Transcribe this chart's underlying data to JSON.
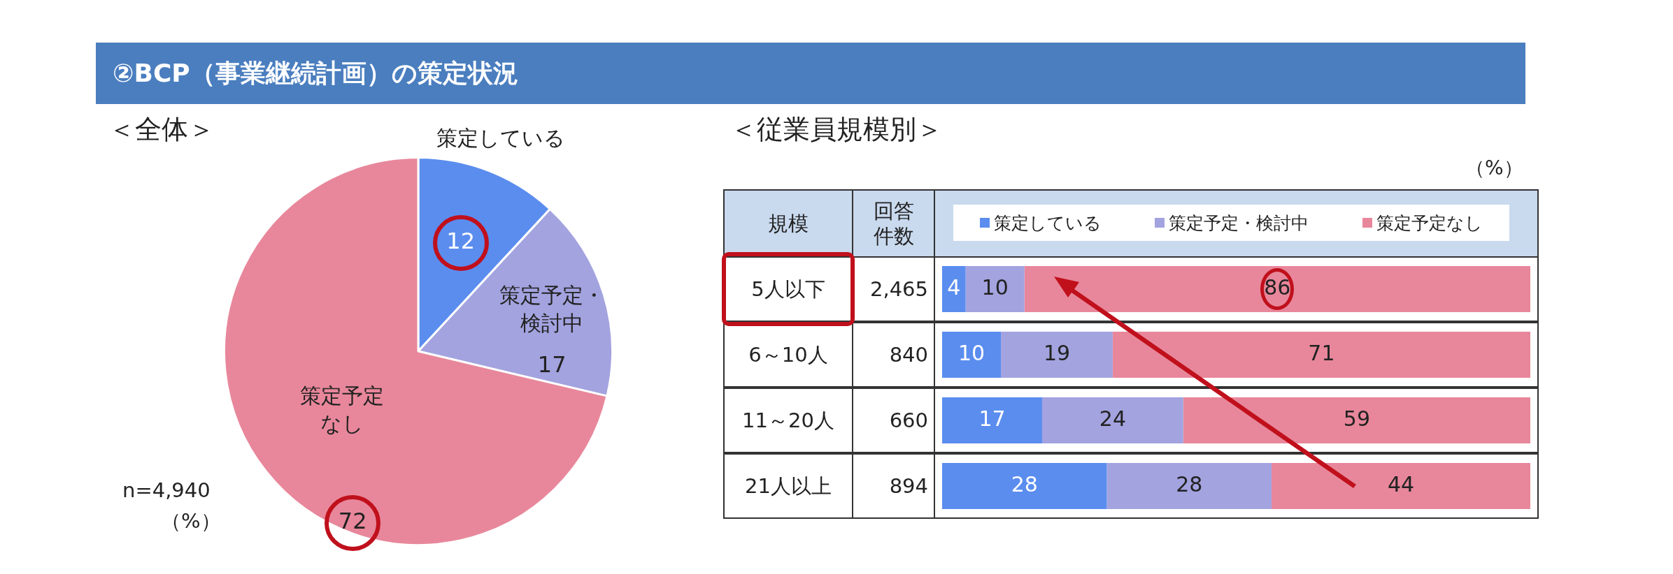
{
  "chart_data": [
    {
      "type": "pie",
      "title": "②BCP（事業継続計画）の策定状況",
      "subtitle": "＜全体＞",
      "categories": [
        "策定している",
        "策定予定・検討中",
        "策定予定なし"
      ],
      "values": [
        12,
        17,
        72
      ],
      "colors": [
        "#5b8def",
        "#a3a3e0",
        "#e8879b"
      ],
      "data_labels": true,
      "legend": false,
      "annotations": [
        "n=4,940",
        "（%）"
      ]
    },
    {
      "type": "bar",
      "orientation": "horizontal",
      "stacked": true,
      "title": "＜従業員規模別＞",
      "ylabel": "規模",
      "categories": [
        "5人以下",
        "6～10人",
        "11～20人",
        "21人以上"
      ],
      "series": [
        {
          "name": "策定している",
          "color": "#5b8def",
          "values": [
            4,
            10,
            17,
            28
          ]
        },
        {
          "name": "策定予定・検討中",
          "color": "#a3a3e0",
          "values": [
            10,
            19,
            24,
            28
          ]
        },
        {
          "name": "策定予定なし",
          "color": "#e8879b",
          "values": [
            86,
            71,
            59,
            44
          ]
        }
      ],
      "data_labels": true,
      "legend": "top",
      "annotations": [
        "（%）",
        "回答件数",
        "2,465",
        "840",
        "660",
        "894"
      ]
    }
  ]
}
